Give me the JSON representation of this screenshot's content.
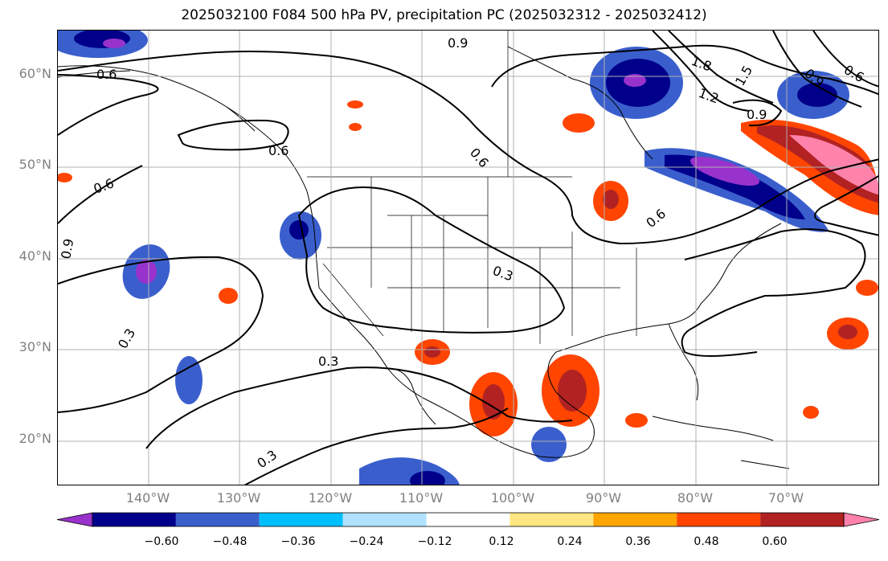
{
  "title": "2025032100 F084 500 hPa PV, precipitation PC (2025032312 - 2025032412)",
  "lat_labels": [
    "60°N",
    "50°N",
    "40°N",
    "30°N",
    "20°N"
  ],
  "lon_labels": [
    "140°W",
    "130°W",
    "120°W",
    "110°W",
    "100°W",
    "90°W",
    "80°W",
    "70°W"
  ],
  "contour_labels": [
    "0.9",
    "0.6",
    "1.8",
    "1.2",
    "1.5",
    "0.9",
    "0.6",
    "0.6",
    "0.6",
    "0.6",
    "0.9",
    "0.9",
    "0.6",
    "0.3",
    "0.3",
    "0.3",
    "0.3"
  ],
  "colorbar": {
    "ticks": [
      "−0.60",
      "−0.48",
      "−0.36",
      "−0.24",
      "−0.12",
      "0.12",
      "0.24",
      "0.36",
      "0.48",
      "0.60"
    ],
    "colors": [
      "#9932cc",
      "#00008b",
      "#3a5fcd",
      "#00bfff",
      "#b0e2ff",
      "#ffffff",
      "#ffe680",
      "#ffa500",
      "#ff4500",
      "#b22222",
      "#ff82ab"
    ]
  }
}
